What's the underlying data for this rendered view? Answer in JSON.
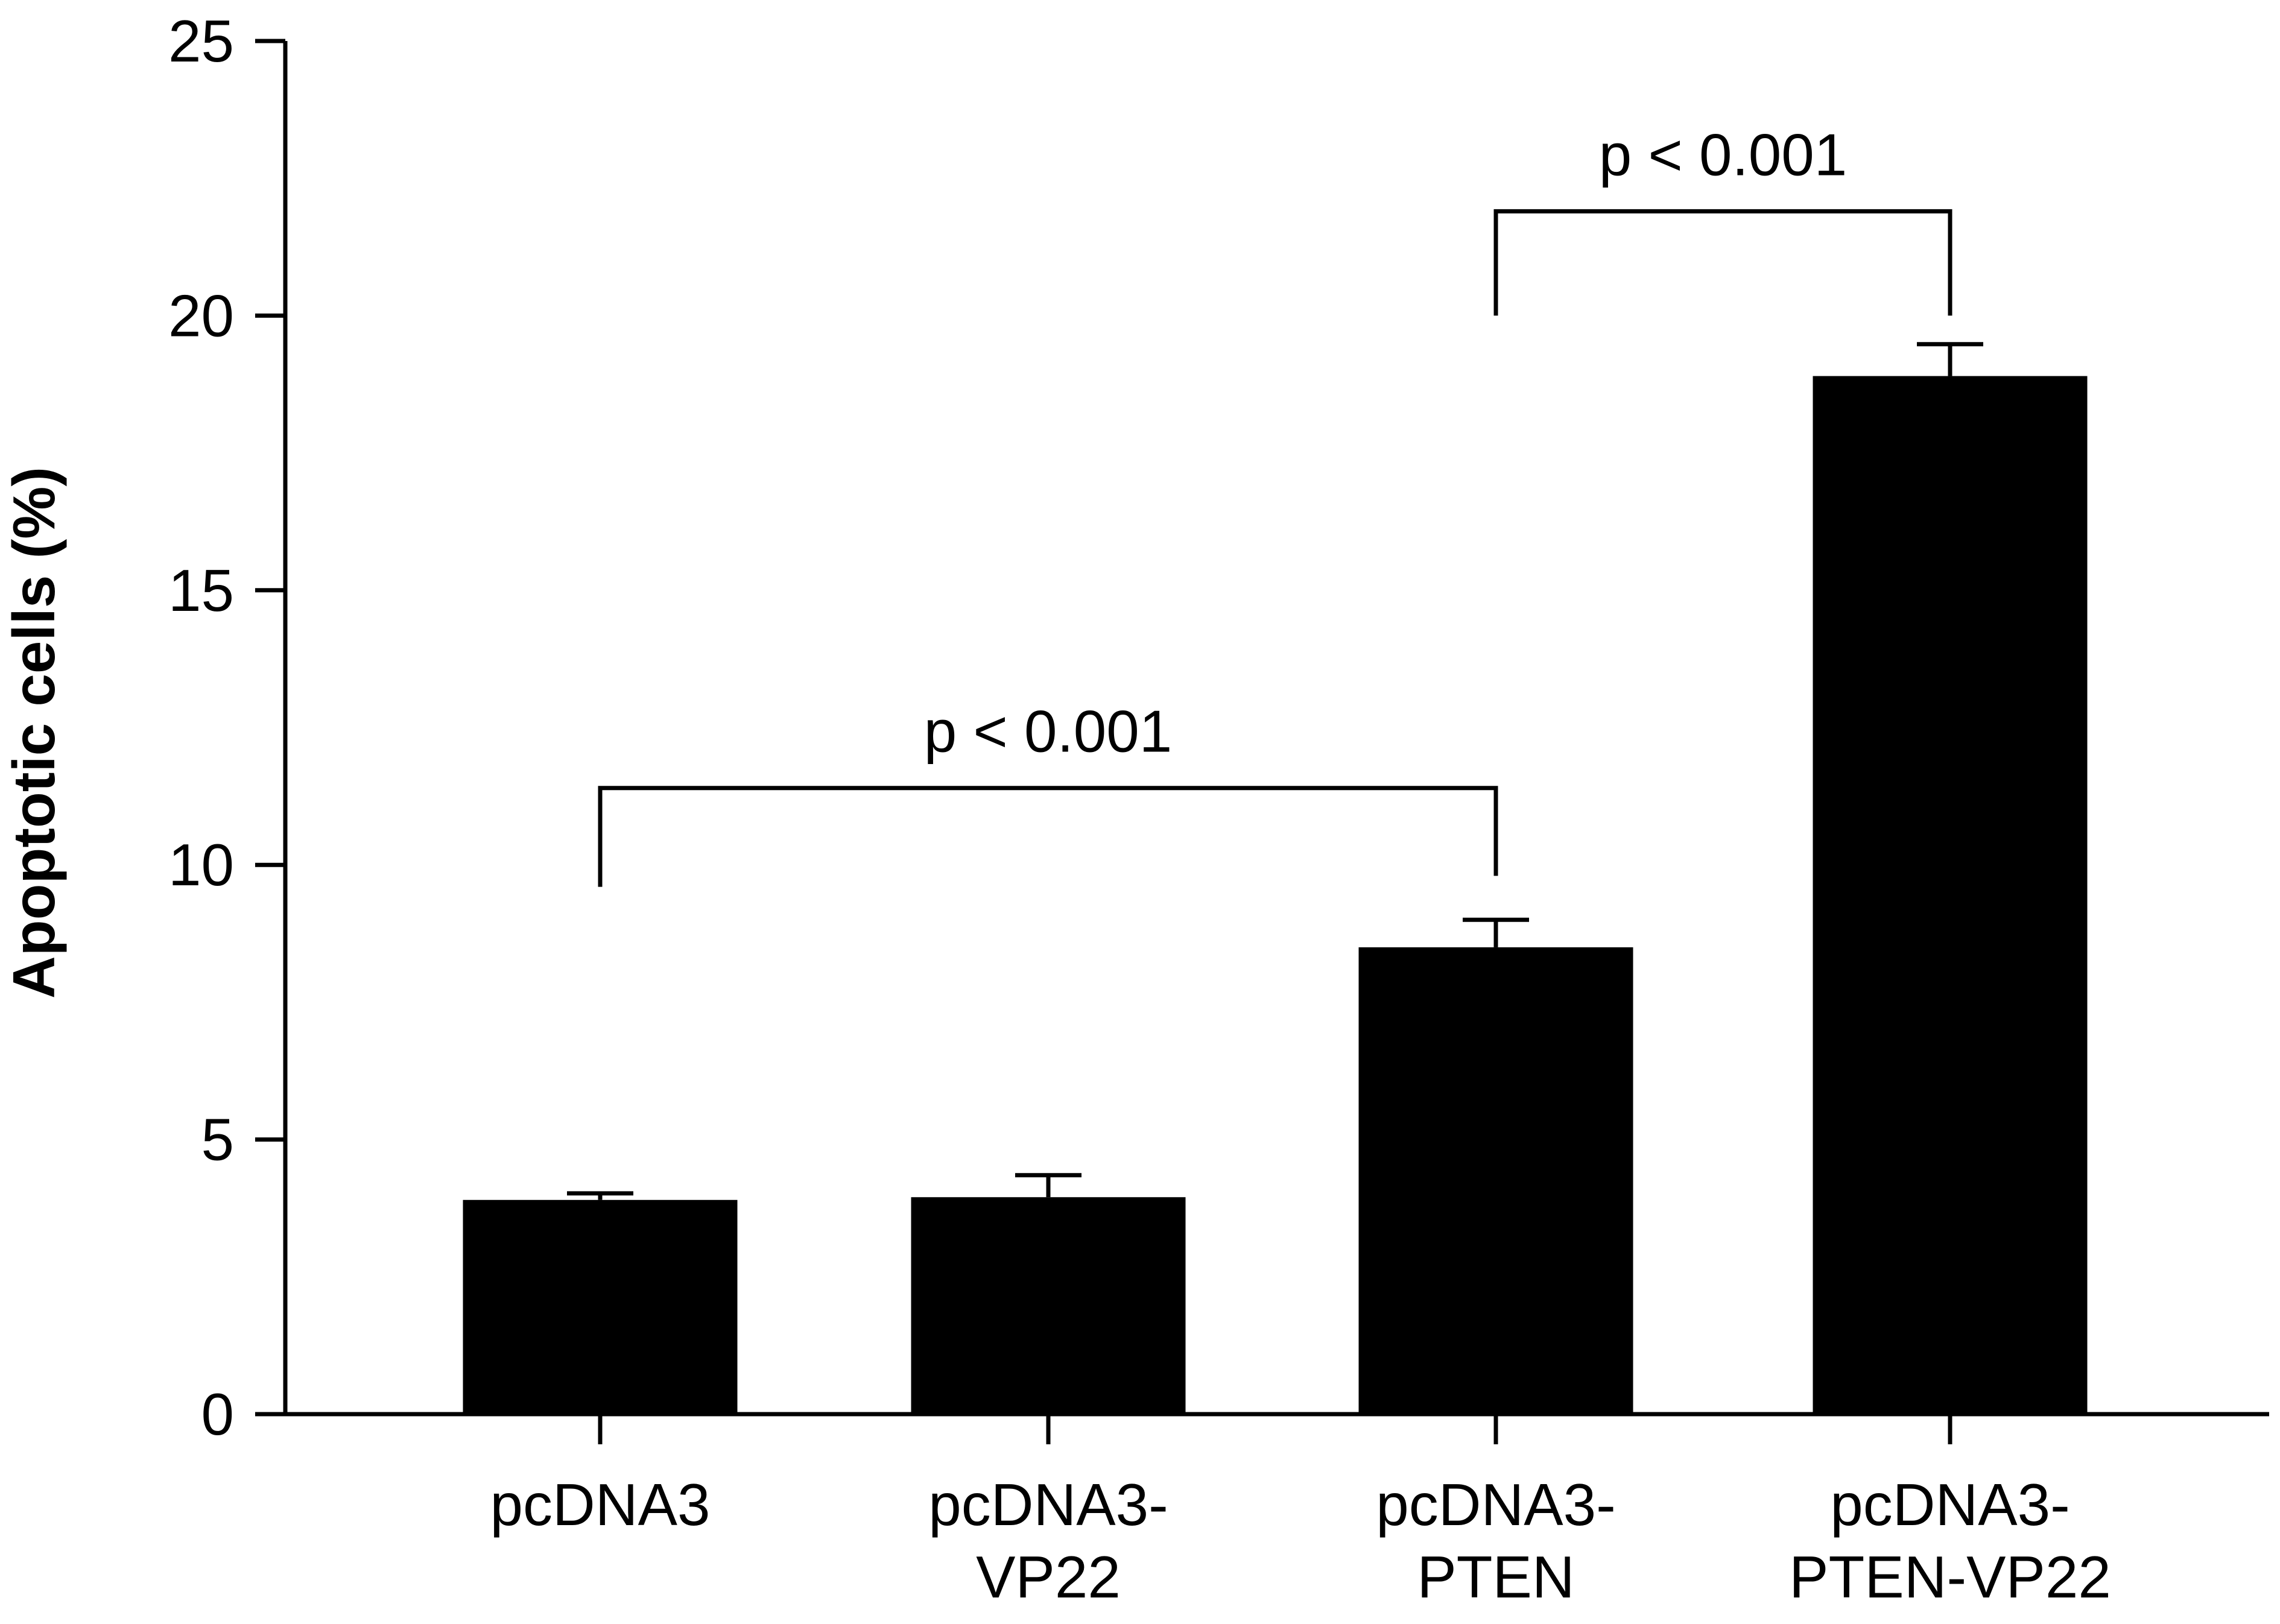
{
  "chart_data": {
    "type": "bar",
    "categories": [
      [
        "pcDNA3"
      ],
      [
        "pcDNA3-",
        "VP22"
      ],
      [
        "pcDNA3-",
        "PTEN"
      ],
      [
        "pcDNA3-",
        "PTEN-VP22"
      ]
    ],
    "values": [
      3.9,
      3.95,
      8.5,
      18.9
    ],
    "errors": [
      0.12,
      0.4,
      0.5,
      0.58
    ],
    "xlabel": "",
    "ylabel": "Apoptotic cells (%)",
    "ylim": [
      0,
      25
    ],
    "yticks": [
      0,
      5,
      10,
      15,
      20,
      25
    ],
    "grid": false,
    "bar_color": "#000000",
    "significance": [
      {
        "from": 0,
        "to": 2,
        "label": "p < 0.001",
        "y": 11.4,
        "left_drop": 9.6,
        "right_drop": 9.8
      },
      {
        "from": 2,
        "to": 3,
        "label": "p < 0.001",
        "y": 21.9,
        "left_drop": 20.0,
        "right_drop": 20.0
      }
    ]
  }
}
